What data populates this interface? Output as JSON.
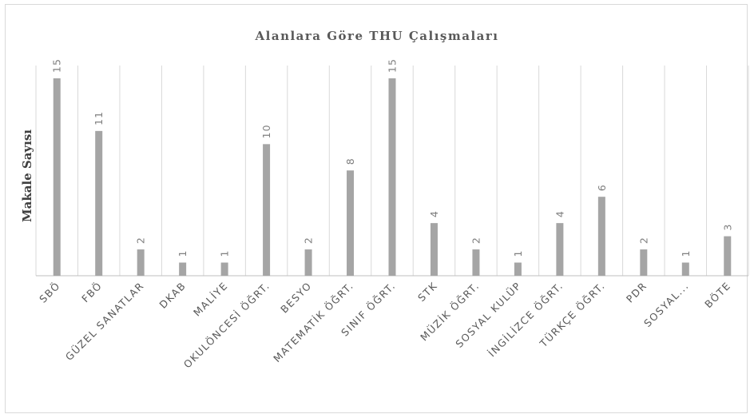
{
  "chart_data": {
    "type": "bar",
    "title": "Alanlara Göre THU Çalışmaları",
    "ylabel": "Makale Sayısı",
    "xlabel": "",
    "categories": [
      "SBÖ",
      "FBÖ",
      "GÜZEL SANATLAR",
      "DKAB",
      "MALİYE",
      "OKULÖNCESİ ÖĞRT.",
      "BESYO",
      "MATEMATİK ÖĞRT.",
      "SINIF ÖĞRT.",
      "STK",
      "MÜZİK ÖĞRT.",
      "SOSYAL KULÜP",
      "İNGİLİZCE ÖĞRT.",
      "TÜRKÇE ÖĞRT.",
      "PDR",
      "SOSYAL...",
      "BÖTE"
    ],
    "values": [
      15,
      11,
      2,
      1,
      1,
      10,
      2,
      8,
      15,
      4,
      2,
      1,
      4,
      6,
      2,
      1,
      3
    ],
    "ylim": [
      0,
      16
    ],
    "grid": "vertical-category-separators",
    "data_labels": true,
    "colors": {
      "bar": "#a5a5a5",
      "grid": "#d9d9d9",
      "axis": "#bfbfbf",
      "text": "#595959",
      "data_label": "#7f7f7f"
    }
  }
}
